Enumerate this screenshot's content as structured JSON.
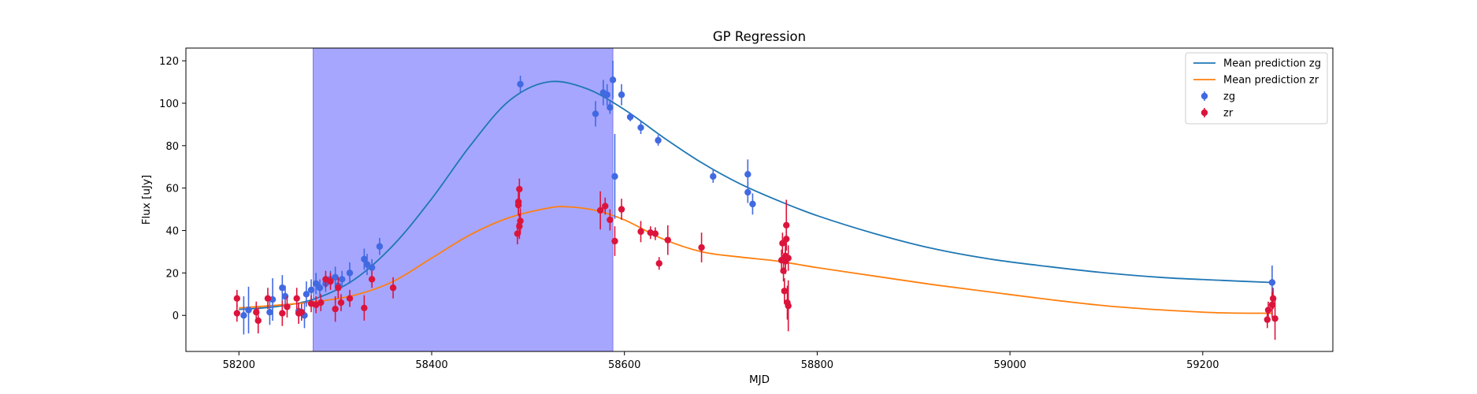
{
  "chart_data": {
    "type": "scatter",
    "title": "GP Regression",
    "xlabel": "MJD",
    "ylabel": "Flux [uJy]",
    "xlim": [
      58145,
      59335
    ],
    "ylim": [
      -17,
      126
    ],
    "xticks": [
      58200,
      58400,
      58600,
      58800,
      59000,
      59200
    ],
    "yticks": [
      0,
      20,
      40,
      60,
      80,
      100,
      120
    ],
    "grid": false,
    "legend_position": "top-right",
    "highlight_span": {
      "x_start": 58277,
      "x_end": 58588,
      "color": "#a6a6ff"
    },
    "series": [
      {
        "name": "Mean prediction zg",
        "kind": "line",
        "color": "#1f77b4",
        "points": [
          [
            58200,
            2.8
          ],
          [
            58240,
            4.2
          ],
          [
            58280,
            8
          ],
          [
            58320,
            17
          ],
          [
            58360,
            33
          ],
          [
            58400,
            55
          ],
          [
            58440,
            80
          ],
          [
            58480,
            101
          ],
          [
            58520,
            110
          ],
          [
            58560,
            107
          ],
          [
            58600,
            97
          ],
          [
            58640,
            84
          ],
          [
            58680,
            72
          ],
          [
            58720,
            62
          ],
          [
            58760,
            54
          ],
          [
            58800,
            47
          ],
          [
            58860,
            38.5
          ],
          [
            58920,
            31.5
          ],
          [
            58980,
            26.5
          ],
          [
            59040,
            23
          ],
          [
            59100,
            20
          ],
          [
            59160,
            17.8
          ],
          [
            59220,
            16.5
          ],
          [
            59272,
            15.5
          ]
        ]
      },
      {
        "name": "Mean prediction zr",
        "kind": "line",
        "color": "#ff7f0e",
        "points": [
          [
            58200,
            3.5
          ],
          [
            58240,
            4.8
          ],
          [
            58280,
            6.5
          ],
          [
            58320,
            9.5
          ],
          [
            58360,
            16
          ],
          [
            58400,
            27
          ],
          [
            58440,
            38
          ],
          [
            58480,
            46
          ],
          [
            58520,
            50.5
          ],
          [
            58540,
            51.2
          ],
          [
            58570,
            49.5
          ],
          [
            58600,
            45
          ],
          [
            58640,
            36
          ],
          [
            58680,
            30
          ],
          [
            58720,
            27.5
          ],
          [
            58760,
            25.5
          ],
          [
            58800,
            22.5
          ],
          [
            58860,
            18.5
          ],
          [
            58920,
            14.5
          ],
          [
            58980,
            11
          ],
          [
            59040,
            7.5
          ],
          [
            59100,
            4.5
          ],
          [
            59160,
            2.5
          ],
          [
            59220,
            1.2
          ],
          [
            59272,
            1
          ]
        ]
      },
      {
        "name": "zg",
        "kind": "errorbar",
        "color": "#4169e1",
        "points": [
          [
            58205,
            0,
            9
          ],
          [
            58210,
            2.5,
            11
          ],
          [
            58232,
            1.5,
            6
          ],
          [
            58235,
            7.5,
            10
          ],
          [
            58245,
            13,
            6
          ],
          [
            58248,
            9,
            5
          ],
          [
            58262,
            2,
            4
          ],
          [
            58268,
            0,
            6
          ],
          [
            58270,
            10,
            6
          ],
          [
            58275,
            12,
            5
          ],
          [
            58280,
            15,
            5
          ],
          [
            58284,
            13,
            4
          ],
          [
            58290,
            15,
            4
          ],
          [
            58295,
            17,
            4
          ],
          [
            58300,
            18,
            5
          ],
          [
            58303,
            14,
            4
          ],
          [
            58307,
            17,
            4
          ],
          [
            58315,
            20,
            5
          ],
          [
            58330,
            26.5,
            5
          ],
          [
            58333,
            24,
            5
          ],
          [
            58338,
            22.5,
            4
          ],
          [
            58346,
            32.5,
            4
          ],
          [
            58492,
            109,
            4
          ],
          [
            58570,
            95,
            6
          ],
          [
            58578,
            105,
            6
          ],
          [
            58582,
            104,
            5
          ],
          [
            58585,
            98,
            3
          ],
          [
            58588,
            111,
            9
          ],
          [
            58590,
            65.5,
            20
          ],
          [
            58597,
            104,
            5
          ],
          [
            58606,
            93.5,
            2
          ],
          [
            58617,
            88.5,
            3
          ],
          [
            58635,
            82.5,
            2.5
          ],
          [
            58692,
            65.5,
            3
          ],
          [
            58728,
            66.5,
            7
          ],
          [
            58728,
            58,
            5
          ],
          [
            58733,
            52.5,
            5
          ],
          [
            59272,
            15.5,
            8
          ]
        ]
      },
      {
        "name": "zr",
        "kind": "errorbar",
        "color": "#dc143c",
        "points": [
          [
            58198,
            8,
            4
          ],
          [
            58198,
            1,
            4
          ],
          [
            58218,
            1.5,
            5
          ],
          [
            58220,
            -2.5,
            6
          ],
          [
            58230,
            8,
            5
          ],
          [
            58245,
            1,
            6
          ],
          [
            58250,
            4,
            5
          ],
          [
            58260,
            8,
            5
          ],
          [
            58262,
            1,
            5
          ],
          [
            58265,
            1.5,
            4
          ],
          [
            58275,
            5.5,
            4
          ],
          [
            58280,
            5,
            4
          ],
          [
            58285,
            6,
            4
          ],
          [
            58290,
            17,
            4
          ],
          [
            58295,
            16,
            4
          ],
          [
            58300,
            3,
            6
          ],
          [
            58303,
            13,
            5
          ],
          [
            58306,
            6,
            4
          ],
          [
            58315,
            8,
            4
          ],
          [
            58330,
            3.5,
            6
          ],
          [
            58338,
            17,
            4
          ],
          [
            58360,
            13,
            5
          ],
          [
            58489,
            38.5,
            5
          ],
          [
            58490,
            52,
            5
          ],
          [
            58490,
            53.5,
            6
          ],
          [
            58491,
            59.5,
            5
          ],
          [
            58491,
            42,
            6
          ],
          [
            58492,
            44.5,
            6
          ],
          [
            58575,
            49.5,
            9
          ],
          [
            58580,
            51.5,
            4
          ],
          [
            58585,
            45,
            5
          ],
          [
            58590,
            35,
            7
          ],
          [
            58597,
            50,
            5
          ],
          [
            58617,
            39.5,
            5
          ],
          [
            58627,
            39,
            3
          ],
          [
            58632,
            38.5,
            3
          ],
          [
            58636,
            24.5,
            3
          ],
          [
            58645,
            35.5,
            7
          ],
          [
            58680,
            32,
            7
          ],
          [
            58763,
            26,
            5
          ],
          [
            58764,
            34,
            5
          ],
          [
            58765,
            21,
            5
          ],
          [
            58766,
            11.5,
            6
          ],
          [
            58767,
            28,
            6
          ],
          [
            58767,
            25.5,
            6
          ],
          [
            58768,
            36,
            5
          ],
          [
            58768,
            42.5,
            12
          ],
          [
            58769,
            6,
            8
          ],
          [
            58770,
            4.5,
            12
          ],
          [
            58770,
            27,
            6
          ],
          [
            59267,
            -2,
            4
          ],
          [
            59268,
            2.5,
            4
          ],
          [
            59272,
            5,
            6
          ],
          [
            59273,
            8,
            5
          ],
          [
            59275,
            -1.5,
            10
          ]
        ]
      }
    ]
  }
}
